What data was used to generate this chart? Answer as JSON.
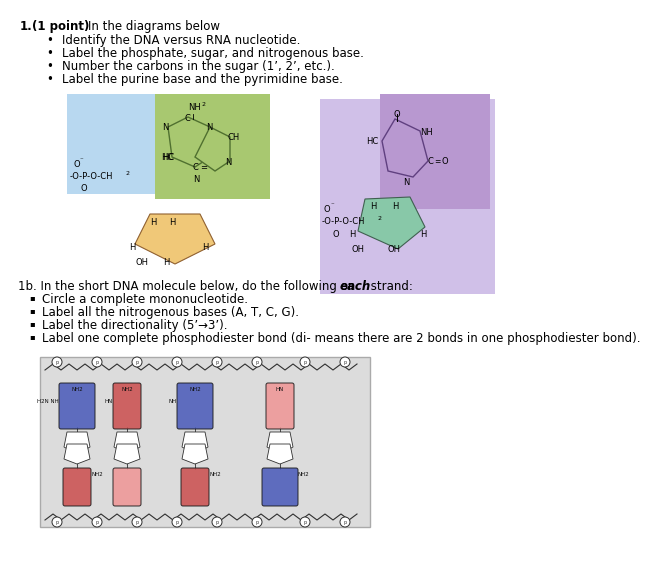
{
  "bg_color": "#ffffff",
  "title_num": "1.",
  "title_bold": "(1 point)",
  "title_rest": " In the diagrams below",
  "bullets": [
    "Identify the DNA versus RNA nucleotide.",
    "Label the phosphate, sugar, and nitrogenous base.",
    "Number the carbons in the sugar (1’, 2’, etc.).",
    "Label the purine base and the pyrimidine base."
  ],
  "section1b": "1b. In the short DNA molecule below, do the following on ",
  "section1b_bold": "each",
  "section1b_end": " strand:",
  "bullets1b": [
    "Circle a complete mononucleotide.",
    "Label all the nitrogenous bases (A, T, C, G).",
    "Label the directionality (5’→3’).",
    "Label one complete phosphodiester bond (di- means there are 2 bonds in one phosphodiester bond)."
  ],
  "nuc1_bg": "#b8d8f0",
  "nuc1_base_bg": "#a8c870",
  "nuc1_sugar_bg": "#f0c878",
  "nuc1_phosphate_bg": "#b8d8f0",
  "nuc2_bg": "#d0c0e8",
  "nuc2_base_bg": "#b898d0",
  "nuc2_sugar_bg": "#88c8a8",
  "nuc2_phosphate_bg": "#d0c0e8",
  "dna_bg": "#dcdcdc"
}
